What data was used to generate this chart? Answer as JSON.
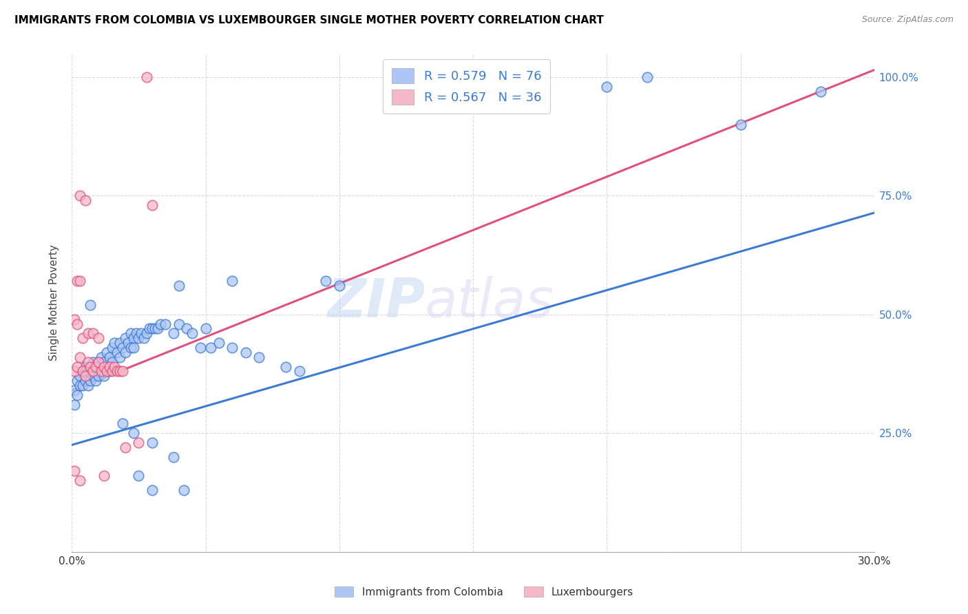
{
  "title": "IMMIGRANTS FROM COLOMBIA VS LUXEMBOURGER SINGLE MOTHER POVERTY CORRELATION CHART",
  "source": "Source: ZipAtlas.com",
  "ylabel": "Single Mother Poverty",
  "legend_label_blue": "Immigrants from Colombia",
  "legend_label_pink": "Luxembourgers",
  "blue_color": "#aec6f5",
  "pink_color": "#f5b8c8",
  "blue_line_color": "#3a7bd5",
  "pink_line_color": "#e0507a",
  "watermark_zip": "ZIP",
  "watermark_atlas": "atlas",
  "blue_scatter": [
    [
      0.001,
      0.34
    ],
    [
      0.001,
      0.31
    ],
    [
      0.002,
      0.36
    ],
    [
      0.002,
      0.33
    ],
    [
      0.003,
      0.37
    ],
    [
      0.003,
      0.35
    ],
    [
      0.004,
      0.38
    ],
    [
      0.004,
      0.35
    ],
    [
      0.005,
      0.39
    ],
    [
      0.005,
      0.36
    ],
    [
      0.006,
      0.38
    ],
    [
      0.006,
      0.35
    ],
    [
      0.007,
      0.39
    ],
    [
      0.007,
      0.36
    ],
    [
      0.008,
      0.4
    ],
    [
      0.008,
      0.37
    ],
    [
      0.009,
      0.39
    ],
    [
      0.009,
      0.36
    ],
    [
      0.01,
      0.4
    ],
    [
      0.01,
      0.37
    ],
    [
      0.011,
      0.41
    ],
    [
      0.012,
      0.4
    ],
    [
      0.012,
      0.37
    ],
    [
      0.013,
      0.42
    ],
    [
      0.014,
      0.41
    ],
    [
      0.014,
      0.38
    ],
    [
      0.015,
      0.43
    ],
    [
      0.015,
      0.4
    ],
    [
      0.016,
      0.44
    ],
    [
      0.017,
      0.42
    ],
    [
      0.018,
      0.44
    ],
    [
      0.018,
      0.41
    ],
    [
      0.019,
      0.43
    ],
    [
      0.02,
      0.45
    ],
    [
      0.02,
      0.42
    ],
    [
      0.021,
      0.44
    ],
    [
      0.022,
      0.46
    ],
    [
      0.022,
      0.43
    ],
    [
      0.023,
      0.45
    ],
    [
      0.023,
      0.43
    ],
    [
      0.024,
      0.46
    ],
    [
      0.025,
      0.45
    ],
    [
      0.026,
      0.46
    ],
    [
      0.027,
      0.45
    ],
    [
      0.028,
      0.46
    ],
    [
      0.029,
      0.47
    ],
    [
      0.03,
      0.47
    ],
    [
      0.031,
      0.47
    ],
    [
      0.032,
      0.47
    ],
    [
      0.033,
      0.48
    ],
    [
      0.007,
      0.52
    ],
    [
      0.04,
      0.56
    ],
    [
      0.06,
      0.57
    ],
    [
      0.095,
      0.57
    ],
    [
      0.1,
      0.56
    ],
    [
      0.035,
      0.48
    ],
    [
      0.038,
      0.46
    ],
    [
      0.04,
      0.48
    ],
    [
      0.043,
      0.47
    ],
    [
      0.045,
      0.46
    ],
    [
      0.05,
      0.47
    ],
    [
      0.048,
      0.43
    ],
    [
      0.052,
      0.43
    ],
    [
      0.055,
      0.44
    ],
    [
      0.06,
      0.43
    ],
    [
      0.065,
      0.42
    ],
    [
      0.07,
      0.41
    ],
    [
      0.08,
      0.39
    ],
    [
      0.085,
      0.38
    ],
    [
      0.2,
      0.98
    ],
    [
      0.215,
      1.0
    ],
    [
      0.25,
      0.9
    ],
    [
      0.28,
      0.97
    ],
    [
      0.019,
      0.27
    ],
    [
      0.023,
      0.25
    ],
    [
      0.03,
      0.23
    ],
    [
      0.038,
      0.2
    ],
    [
      0.042,
      0.13
    ],
    [
      0.025,
      0.16
    ],
    [
      0.03,
      0.13
    ]
  ],
  "pink_scatter": [
    [
      0.001,
      0.38
    ],
    [
      0.002,
      0.57
    ],
    [
      0.003,
      0.57
    ],
    [
      0.002,
      0.39
    ],
    [
      0.003,
      0.41
    ],
    [
      0.004,
      0.38
    ],
    [
      0.005,
      0.37
    ],
    [
      0.006,
      0.4
    ],
    [
      0.007,
      0.39
    ],
    [
      0.008,
      0.38
    ],
    [
      0.009,
      0.39
    ],
    [
      0.01,
      0.4
    ],
    [
      0.011,
      0.38
    ],
    [
      0.012,
      0.39
    ],
    [
      0.013,
      0.38
    ],
    [
      0.014,
      0.39
    ],
    [
      0.015,
      0.38
    ],
    [
      0.016,
      0.39
    ],
    [
      0.017,
      0.38
    ],
    [
      0.018,
      0.38
    ],
    [
      0.019,
      0.38
    ],
    [
      0.003,
      0.75
    ],
    [
      0.005,
      0.74
    ],
    [
      0.03,
      0.73
    ],
    [
      0.001,
      0.49
    ],
    [
      0.002,
      0.48
    ],
    [
      0.004,
      0.45
    ],
    [
      0.006,
      0.46
    ],
    [
      0.008,
      0.46
    ],
    [
      0.01,
      0.45
    ],
    [
      0.001,
      0.17
    ],
    [
      0.003,
      0.15
    ],
    [
      0.012,
      0.16
    ],
    [
      0.02,
      0.22
    ],
    [
      0.025,
      0.23
    ],
    [
      0.028,
      1.0
    ]
  ],
  "blue_line_y_intercept": 0.225,
  "blue_line_slope": 1.63,
  "pink_line_y_intercept": 0.34,
  "pink_line_slope": 2.25,
  "xlim": [
    0.0,
    0.3
  ],
  "ylim": [
    0.0,
    1.05
  ],
  "x_ticks": [
    0.0,
    0.05,
    0.1,
    0.15,
    0.2,
    0.25,
    0.3
  ],
  "y_ticks": [
    0.0,
    0.25,
    0.5,
    0.75,
    1.0
  ],
  "grid_color": "#d8d8e8",
  "background_color": "#ffffff"
}
